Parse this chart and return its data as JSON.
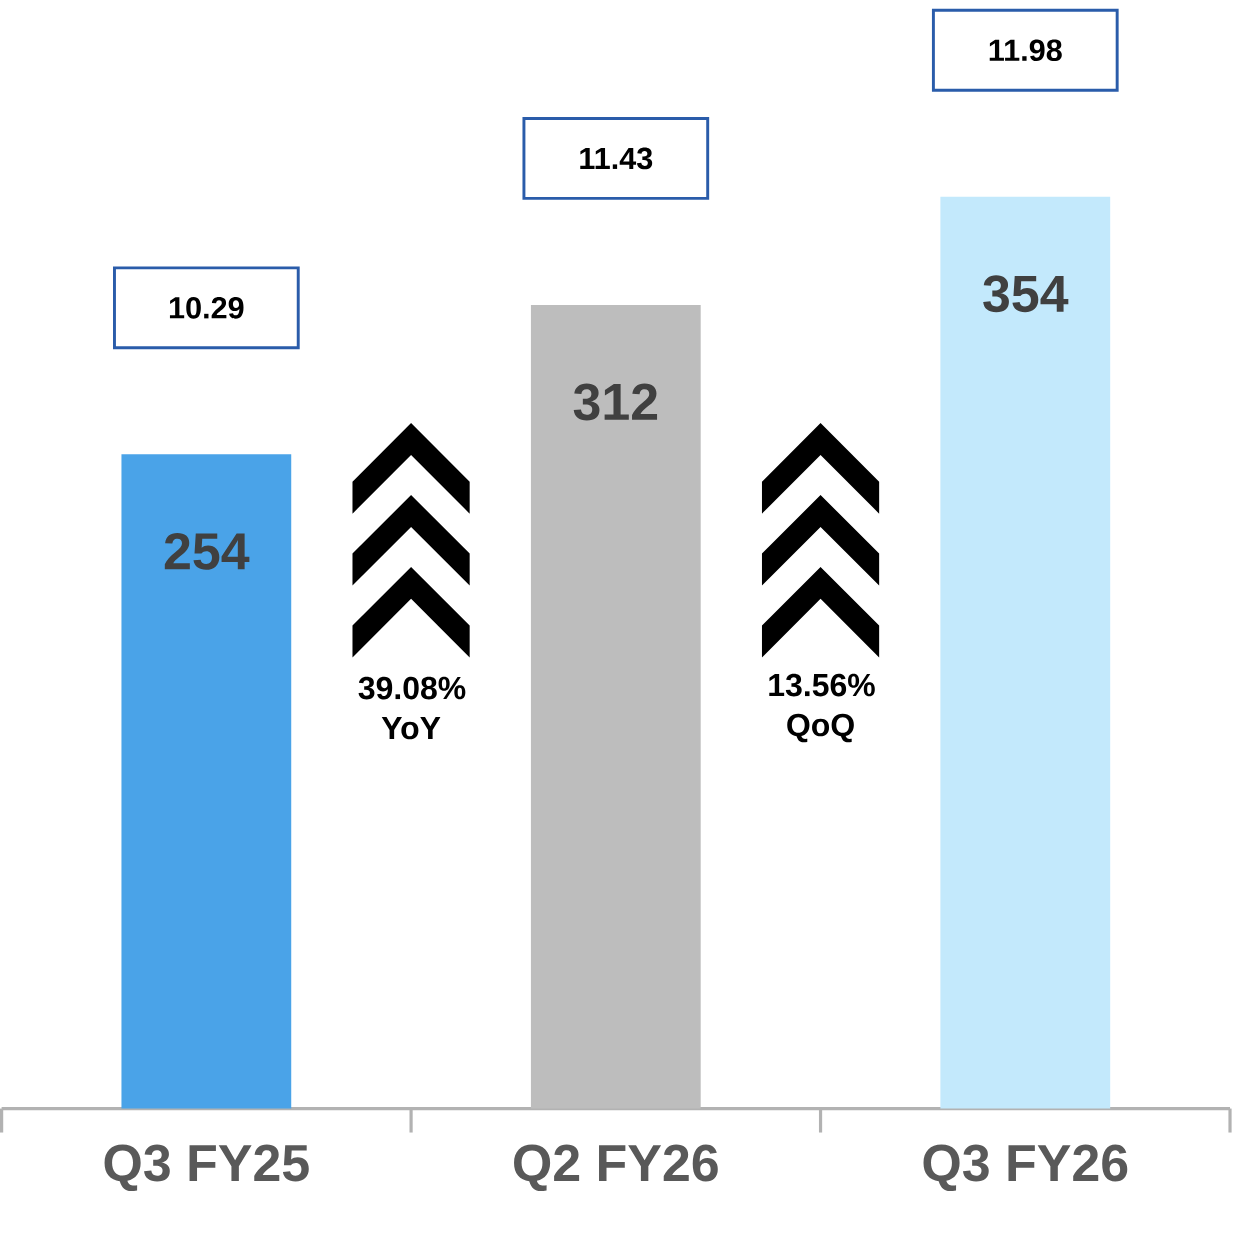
{
  "chart_data": {
    "type": "bar",
    "categories": [
      "Q3 FY25",
      "Q2 FY26",
      "Q3 FY26"
    ],
    "values": [
      254,
      312,
      354
    ],
    "colors": [
      "#4aa3e8",
      "#bdbdbd",
      "#c3e9fc"
    ],
    "data_labels": true,
    "tick_labels": "x",
    "annotations": [
      "10.29",
      "11.43",
      "11.98",
      "39.08% YoY",
      "13.56% QoQ"
    ]
  }
}
